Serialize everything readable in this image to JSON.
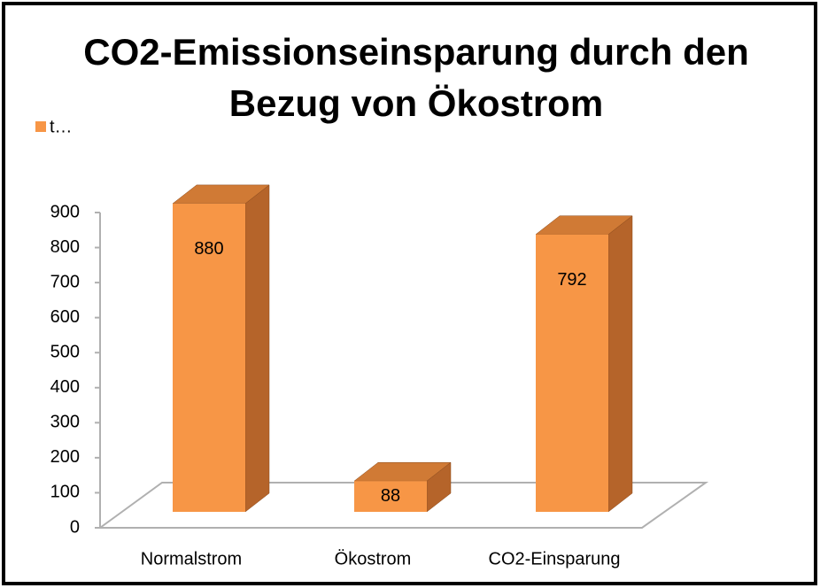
{
  "chart_data": {
    "type": "bar",
    "title_lines": [
      "CO2-Emissionseinsparung durch den",
      "Bezug von Ökostrom"
    ],
    "categories": [
      "Normalstrom",
      "Ökostrom",
      "CO2-Einsparung"
    ],
    "series": [
      {
        "name": "t…",
        "color": "#f79646",
        "values": [
          880,
          88,
          792
        ]
      }
    ],
    "ylim": [
      0,
      900
    ],
    "yticks": [
      0,
      100,
      200,
      300,
      400,
      500,
      600,
      700,
      800,
      900
    ],
    "legend": "top-left",
    "data_labels": true
  }
}
